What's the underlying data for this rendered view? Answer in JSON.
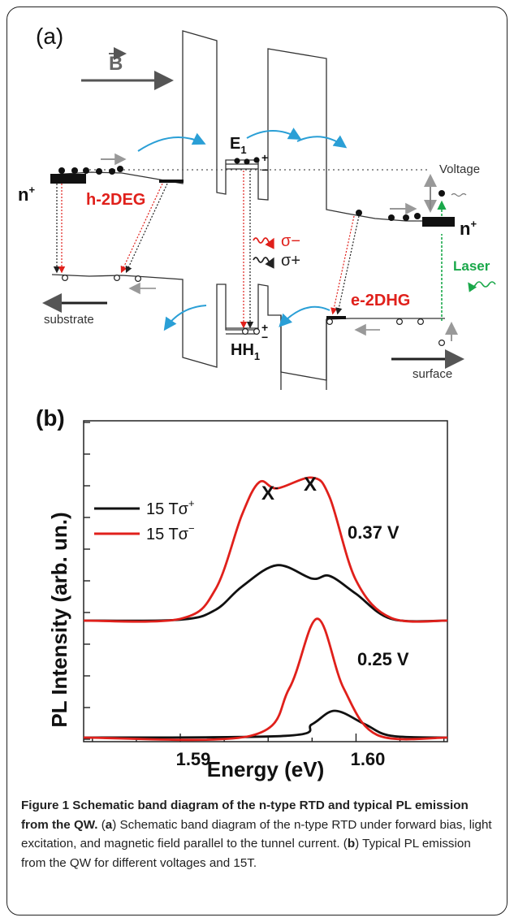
{
  "panel_a": {
    "label": "(a)",
    "field_label": "B",
    "n_left": "n",
    "n_right": "n",
    "n_sup": "+",
    "h2deg": "h-2DEG",
    "e2dhg": "e-2DHG",
    "e1": "E",
    "e1_sub": "1",
    "hh1": "HH",
    "hh1_sub": "1",
    "voltage": "Voltage",
    "laser": "Laser",
    "sigma_minus": "σ−",
    "sigma_plus": "σ+",
    "substrate": "substrate",
    "surface": "surface",
    "plus": "+",
    "minus": "−"
  },
  "panel_b": {
    "label": "(b)",
    "ylabel": "PL Intensity (arb. un.)",
    "xlabel": "Energy (eV)",
    "peak_x_minus": "X",
    "peak_x_minus_sup": "-",
    "peak_x": "X",
    "v_top": "0.37 V",
    "v_bottom": "0.25 V",
    "legend": [
      {
        "label": "15 Tσ",
        "sup": "+",
        "color": "#111111"
      },
      {
        "label": "15 Tσ",
        "sup": "−",
        "color": "#e0201b"
      }
    ]
  },
  "chart_data": {
    "type": "line",
    "title": "",
    "xlabel": "Energy (eV)",
    "ylabel": "PL Intensity (arb. un.)",
    "xlim": [
      1.5845,
      1.6052
    ],
    "xticks": [
      1.59,
      1.6
    ],
    "xtick_labels": [
      "1.59",
      "1.60"
    ],
    "stacked_offsets": [
      0,
      1
    ],
    "series": [
      {
        "name": "15 Tσ⁺",
        "color": "#111111",
        "voltage": "0.37 V",
        "x": [
          1.5845,
          1.59,
          1.592,
          1.5935,
          1.5955,
          1.5975,
          1.5985,
          1.6,
          1.602,
          1.6052
        ],
        "values": [
          0.0,
          0.01,
          0.12,
          0.38,
          0.62,
          0.47,
          0.5,
          0.3,
          0.02,
          0.0
        ]
      },
      {
        "name": "15 Tσ⁻",
        "color": "#e0201b",
        "voltage": "0.37 V",
        "x": [
          1.5845,
          1.59,
          1.592,
          1.5935,
          1.5945,
          1.5955,
          1.5975,
          1.5985,
          1.6,
          1.602,
          1.6052
        ],
        "values": [
          0.0,
          0.02,
          0.35,
          1.18,
          1.55,
          1.48,
          1.6,
          1.38,
          0.45,
          0.03,
          0.0
        ]
      },
      {
        "name": "15 Tσ⁺",
        "color": "#111111",
        "voltage": "0.25 V",
        "x": [
          1.5845,
          1.596,
          1.5975,
          1.5988,
          1.6005,
          1.602,
          1.6052
        ],
        "values": [
          0.0,
          0.02,
          0.15,
          0.3,
          0.15,
          0.02,
          0.0
        ]
      },
      {
        "name": "15 Tσ⁻",
        "color": "#e0201b",
        "voltage": "0.25 V",
        "x": [
          1.5845,
          1.594,
          1.5962,
          1.5978,
          1.5993,
          1.6012,
          1.6052
        ],
        "values": [
          0.0,
          0.02,
          0.55,
          1.33,
          0.55,
          0.03,
          0.0
        ]
      }
    ]
  },
  "caption": {
    "title": "Figure 1 Schematic band diagram of the n-type RTD and typical PL emission from the QW.",
    "a_open": " (",
    "a_label": "a",
    "a_text": ") Schematic band diagram of the n-type RTD under forward bias, light excitation, and magnetic field parallel to the tunnel current. (",
    "b_label": "b",
    "b_text": ") Typical PL emission from the QW for different voltages and 15T."
  }
}
